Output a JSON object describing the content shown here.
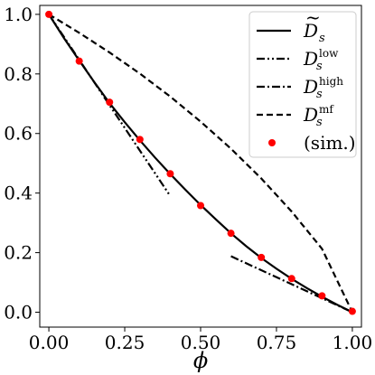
{
  "chart_data": {
    "type": "line",
    "xlabel": "ϕ",
    "ylabel": "",
    "xlim": [
      -0.03,
      1.03
    ],
    "ylim": [
      -0.05,
      1.03
    ],
    "xticks": [
      0.0,
      0.25,
      0.5,
      0.75,
      1.0
    ],
    "xtick_labels": [
      "0.00",
      "0.25",
      "0.50",
      "0.75",
      "1.00"
    ],
    "yticks": [
      0.0,
      0.2,
      0.4,
      0.6,
      0.8,
      1.0
    ],
    "ytick_labels": [
      "0.0",
      "0.2",
      "0.4",
      "0.6",
      "0.8",
      "1.0"
    ],
    "grid": false,
    "legend_position": "top-right",
    "series": [
      {
        "name": "D̃_s",
        "style": "solid",
        "color": "#000000",
        "x": [
          0.0,
          0.05,
          0.1,
          0.15,
          0.2,
          0.25,
          0.3,
          0.35,
          0.4,
          0.45,
          0.5,
          0.55,
          0.6,
          0.65,
          0.7,
          0.75,
          0.8,
          0.85,
          0.9,
          0.95,
          1.0
        ],
        "y": [
          1.0,
          0.92,
          0.845,
          0.772,
          0.702,
          0.638,
          0.577,
          0.519,
          0.464,
          0.411,
          0.36,
          0.312,
          0.265,
          0.222,
          0.182,
          0.146,
          0.112,
          0.081,
          0.052,
          0.025,
          0.0
        ]
      },
      {
        "name": "D_s^low",
        "style": "dashdotdot",
        "color": "#000000",
        "x": [
          0.0,
          0.4
        ],
        "y": [
          1.0,
          0.39
        ]
      },
      {
        "name": "D_s^high",
        "style": "dashdot",
        "color": "#000000",
        "x": [
          0.6,
          1.0
        ],
        "y": [
          0.188,
          0.0
        ]
      },
      {
        "name": "D_s^mf",
        "style": "dashed",
        "color": "#000000",
        "x": [
          0.0,
          0.1,
          0.2,
          0.3,
          0.4,
          0.5,
          0.6,
          0.7,
          0.8,
          0.9,
          1.0
        ],
        "y": [
          1.0,
          0.938,
          0.872,
          0.801,
          0.724,
          0.64,
          0.549,
          0.449,
          0.338,
          0.213,
          0.0
        ]
      },
      {
        "name": "(sim.)",
        "style": "markers",
        "color": "#ff0000",
        "x": [
          0.0,
          0.1,
          0.2,
          0.3,
          0.4,
          0.5,
          0.6,
          0.7,
          0.8,
          0.9,
          1.0
        ],
        "y": [
          1.0,
          0.843,
          0.705,
          0.58,
          0.465,
          0.358,
          0.265,
          0.184,
          0.113,
          0.055,
          0.003
        ]
      }
    ],
    "legend": {
      "entries": [
        {
          "base": "D",
          "tilde": true,
          "sub": "s",
          "sup": ""
        },
        {
          "base": "D",
          "tilde": false,
          "sub": "s",
          "sup": "low"
        },
        {
          "base": "D",
          "tilde": false,
          "sub": "s",
          "sup": "high"
        },
        {
          "base": "D",
          "tilde": false,
          "sub": "s",
          "sup": "mf"
        },
        {
          "text": "(sim.)"
        }
      ]
    }
  }
}
